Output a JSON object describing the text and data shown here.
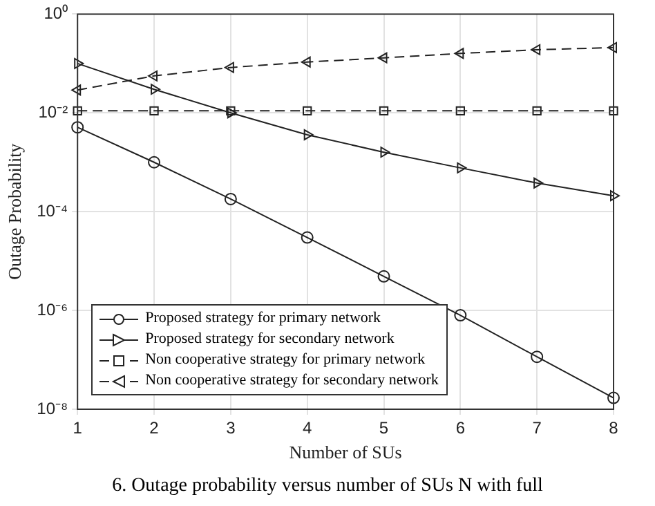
{
  "chart_data": {
    "type": "line",
    "xlabel": "Number of SUs",
    "ylabel": "Outage Probability",
    "x": [
      1,
      2,
      3,
      4,
      5,
      6,
      7,
      8
    ],
    "series": [
      {
        "name": "Proposed strategy for primary network",
        "color": "#222222",
        "marker": "circle",
        "line_style": "solid",
        "values": [
          0.0051,
          0.001,
          0.00018,
          3e-05,
          4.9e-06,
          8e-07,
          1.15e-07,
          1.7e-08
        ]
      },
      {
        "name": "Proposed strategy for secondary network",
        "color": "#222222",
        "marker": "triangle-right",
        "line_style": "solid",
        "values": [
          0.1,
          0.03,
          0.01,
          0.0036,
          0.0016,
          0.00077,
          0.00038,
          0.00021
        ]
      },
      {
        "name": "Non cooperative strategy for primary network",
        "color": "#222222",
        "marker": "square",
        "line_style": "dashed",
        "values": [
          0.011,
          0.011,
          0.011,
          0.011,
          0.011,
          0.011,
          0.011,
          0.011
        ]
      },
      {
        "name": "Non cooperative strategy for secondary network",
        "color": "#222222",
        "marker": "triangle-left",
        "line_style": "dashed",
        "values": [
          0.029,
          0.056,
          0.083,
          0.107,
          0.13,
          0.16,
          0.19,
          0.21
        ]
      }
    ],
    "log": "y",
    "xlim": [
      1,
      8
    ],
    "xticks": [
      1,
      2,
      3,
      4,
      5,
      6,
      7,
      8
    ],
    "ylim": [
      1e-08,
      1
    ],
    "yticks": [
      {
        "value": 1e-08,
        "label": "10⁻⁸"
      },
      {
        "value": 1e-06,
        "label": "10⁻⁶"
      },
      {
        "value": 0.0001,
        "label": "10⁻⁴"
      },
      {
        "value": 0.01,
        "label": "10⁻²"
      },
      {
        "value": 1,
        "label": "10⁰"
      }
    ],
    "grid": true,
    "legend": "bottom left",
    "annotations": [
      "6.   Outage probability versus number of SUs N with full"
    ]
  }
}
